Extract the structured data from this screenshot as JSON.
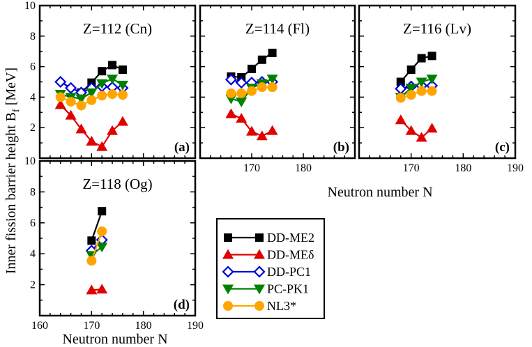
{
  "figure": {
    "y_axis_label": "Inner fission barrier height B",
    "y_axis_sub": "f",
    "y_axis_unit": "[MeV]",
    "x_axis_label": "Neutron number N"
  },
  "legend": {
    "location": "bottom-right",
    "entries": [
      {
        "name": "DD-ME2",
        "color": "#000000",
        "marker": "square-filled"
      },
      {
        "name": "DD-MEδ",
        "color": "#e00000",
        "marker": "triangle-up-filled"
      },
      {
        "name": "DD-PC1",
        "color": "#0000e0",
        "marker": "diamond-open"
      },
      {
        "name": "PC-PK1",
        "color": "#008000",
        "marker": "triangle-down-filled"
      },
      {
        "name": "NL3*",
        "color": "#ffa500",
        "marker": "circle-filled"
      }
    ]
  },
  "chart_data": [
    {
      "type": "line",
      "panel": "a",
      "title": "Z=112 (Cn)",
      "label": "(a)",
      "xlim": [
        160,
        190
      ],
      "ylim": [
        0,
        10
      ],
      "x_ticks": [],
      "y_ticks": [
        2,
        4,
        6,
        8,
        10
      ],
      "series": [
        {
          "name": "DD-ME2",
          "x": [
            168,
            170,
            172,
            174,
            176
          ],
          "y": [
            4.3,
            4.95,
            5.7,
            6.1,
            5.8
          ]
        },
        {
          "name": "DD-MEδ",
          "x": [
            164,
            166,
            168,
            170,
            172,
            174,
            176
          ],
          "y": [
            3.5,
            2.8,
            1.9,
            1.1,
            0.75,
            1.8,
            2.4
          ]
        },
        {
          "name": "DD-PC1",
          "x": [
            164,
            166,
            168,
            170,
            172,
            174,
            176
          ],
          "y": [
            5.0,
            4.6,
            4.3,
            4.6,
            4.7,
            4.65,
            4.6
          ]
        },
        {
          "name": "PC-PK1",
          "x": [
            164,
            166,
            168,
            170,
            172,
            174,
            176
          ],
          "y": [
            4.2,
            4.0,
            3.9,
            4.3,
            4.9,
            5.2,
            4.8
          ]
        },
        {
          "name": "NL3*",
          "x": [
            164,
            166,
            168,
            170,
            172,
            174,
            176
          ],
          "y": [
            4.0,
            3.7,
            3.45,
            3.8,
            4.1,
            4.2,
            4.15
          ]
        }
      ]
    },
    {
      "type": "line",
      "panel": "b",
      "title": "Z=114 (Fl)",
      "label": "(b)",
      "xlim": [
        160,
        190
      ],
      "ylim": [
        0,
        10
      ],
      "x_ticks": [
        170,
        180
      ],
      "y_ticks": [],
      "series": [
        {
          "name": "DD-ME2",
          "x": [
            166,
            168,
            170,
            172,
            174
          ],
          "y": [
            5.35,
            5.3,
            5.85,
            6.45,
            6.9
          ]
        },
        {
          "name": "DD-MEδ",
          "x": [
            166,
            168,
            170,
            172,
            174
          ],
          "y": [
            2.9,
            2.6,
            1.75,
            1.45,
            1.8
          ]
        },
        {
          "name": "DD-PC1",
          "x": [
            166,
            168,
            170,
            172,
            174
          ],
          "y": [
            5.15,
            4.95,
            4.95,
            5.0,
            5.0
          ]
        },
        {
          "name": "PC-PK1",
          "x": [
            166,
            168,
            170,
            172,
            174
          ],
          "y": [
            3.9,
            3.7,
            4.6,
            4.9,
            5.2
          ]
        },
        {
          "name": "NL3*",
          "x": [
            166,
            168,
            170,
            172,
            174
          ],
          "y": [
            4.25,
            4.25,
            4.4,
            4.65,
            4.65
          ]
        }
      ]
    },
    {
      "type": "line",
      "panel": "c",
      "title": "Z=116 (Lv)",
      "label": "(c)",
      "xlim": [
        160,
        190
      ],
      "ylim": [
        0,
        10
      ],
      "x_ticks": [
        170,
        180,
        190
      ],
      "y_ticks": [],
      "series": [
        {
          "name": "DD-ME2",
          "x": [
            168,
            170,
            172,
            174
          ],
          "y": [
            5.0,
            5.8,
            6.55,
            6.7
          ]
        },
        {
          "name": "DD-MEδ",
          "x": [
            168,
            170,
            172,
            174
          ],
          "y": [
            2.5,
            1.8,
            1.35,
            1.95
          ]
        },
        {
          "name": "DD-PC1",
          "x": [
            168,
            170,
            172,
            174
          ],
          "y": [
            4.55,
            4.7,
            4.75,
            4.75
          ]
        },
        {
          "name": "PC-PK1",
          "x": [
            168,
            170,
            172,
            174
          ],
          "y": [
            4.0,
            4.6,
            5.0,
            5.2
          ]
        },
        {
          "name": "NL3*",
          "x": [
            168,
            170,
            172,
            174
          ],
          "y": [
            3.95,
            4.15,
            4.4,
            4.4
          ]
        }
      ]
    },
    {
      "type": "line",
      "panel": "d",
      "title": "Z=118 (Og)",
      "label": "(d)",
      "xlim": [
        160,
        190
      ],
      "ylim": [
        0,
        10
      ],
      "x_ticks": [
        160,
        170,
        180,
        190
      ],
      "y_ticks": [
        2,
        4,
        6,
        8,
        10
      ],
      "series": [
        {
          "name": "DD-ME2",
          "x": [
            170,
            172
          ],
          "y": [
            4.85,
            6.75
          ]
        },
        {
          "name": "DD-MEδ",
          "x": [
            170,
            172
          ],
          "y": [
            1.65,
            1.7
          ]
        },
        {
          "name": "DD-PC1",
          "x": [
            170,
            172
          ],
          "y": [
            4.2,
            4.9
          ]
        },
        {
          "name": "PC-PK1",
          "x": [
            170,
            172
          ],
          "y": [
            3.9,
            4.45
          ]
        },
        {
          "name": "NL3*",
          "x": [
            170,
            172
          ],
          "y": [
            3.55,
            5.45
          ]
        }
      ]
    }
  ]
}
